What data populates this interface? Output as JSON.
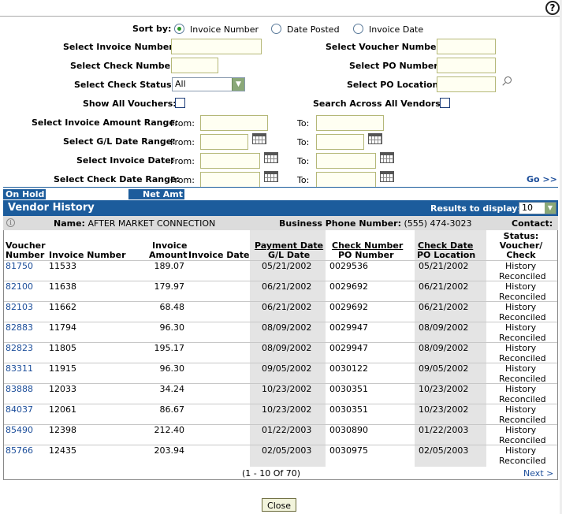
{
  "form": {
    "sort_by_label": "Sort by:",
    "sort_options": [
      "Invoice Number",
      "Date Posted",
      "Invoice Date"
    ],
    "sort_selected": "Invoice Number",
    "invoice_number_label": "Select Invoice Number:",
    "voucher_number_label": "Select Voucher Number:",
    "check_number_label": "Select Check Number:",
    "po_number_label": "Select PO Number:",
    "check_status_label": "Select Check Status:",
    "check_status_value": "All",
    "po_location_label": "Select PO Location:",
    "show_all_vouchers_label": "Show All Vouchers:",
    "search_all_vendors_label": "Search Across All Vendors:",
    "invoice_amount_range_label": "Select Invoice Amount Range:",
    "gl_date_range_label": "Select G/L Date Range:",
    "invoice_date_label": "Select Invoice Date:",
    "check_date_range_label": "Select Check Date Range:",
    "from_label": "From:",
    "to_label": "To:",
    "go_label": "Go >>"
  },
  "summary_bar": {
    "on_hold_label": "On Hold",
    "net_amt_label": "Net Amt"
  },
  "vendor_history": {
    "title": "Vendor History",
    "results_label": "Results to display:",
    "results_value": "10",
    "name_label": "Name:",
    "name_value": "AFTER MARKET CONNECTION",
    "phone_label": "Business Phone Number:",
    "phone_value": "(555) 474-3023",
    "contact_label": "Contact:"
  },
  "table": {
    "headers": {
      "voucher_1": "Voucher",
      "voucher_2": "Number",
      "invoice_number": "Invoice Number",
      "invoice_amount_1": "Invoice",
      "invoice_amount_2": "Amount",
      "invoice_date": "Invoice Date",
      "payment_date": "Payment Date",
      "gl_date": "G/L Date",
      "check_number": "Check Number",
      "po_number": "PO Number",
      "check_date": "Check Date",
      "po_location": "PO Location",
      "status_1": "Status:",
      "status_2": "Voucher/",
      "status_3": "Check"
    },
    "rows": [
      {
        "voucher": "81750",
        "invoice": "11533",
        "amount": "189.07",
        "payment_date": "05/21/2002",
        "check_number": "0029536",
        "check_date": "05/21/2002",
        "status_1": "History",
        "status_2": "Reconciled"
      },
      {
        "voucher": "82100",
        "invoice": "11638",
        "amount": "179.97",
        "payment_date": "06/21/2002",
        "check_number": "0029692",
        "check_date": "06/21/2002",
        "status_1": "History",
        "status_2": "Reconciled"
      },
      {
        "voucher": "82103",
        "invoice": "11662",
        "amount": "68.48",
        "payment_date": "06/21/2002",
        "check_number": "0029692",
        "check_date": "06/21/2002",
        "status_1": "History",
        "status_2": "Reconciled"
      },
      {
        "voucher": "82883",
        "invoice": "11794",
        "amount": "96.30",
        "payment_date": "08/09/2002",
        "check_number": "0029947",
        "check_date": "08/09/2002",
        "status_1": "History",
        "status_2": "Reconciled"
      },
      {
        "voucher": "82823",
        "invoice": "11805",
        "amount": "195.17",
        "payment_date": "08/09/2002",
        "check_number": "0029947",
        "check_date": "08/09/2002",
        "status_1": "History",
        "status_2": "Reconciled"
      },
      {
        "voucher": "83311",
        "invoice": "11915",
        "amount": "96.30",
        "payment_date": "09/05/2002",
        "check_number": "0030122",
        "check_date": "09/05/2002",
        "status_1": "History",
        "status_2": "Reconciled"
      },
      {
        "voucher": "83888",
        "invoice": "12033",
        "amount": "34.24",
        "payment_date": "10/23/2002",
        "check_number": "0030351",
        "check_date": "10/23/2002",
        "status_1": "History",
        "status_2": "Reconciled"
      },
      {
        "voucher": "84037",
        "invoice": "12061",
        "amount": "86.67",
        "payment_date": "10/23/2002",
        "check_number": "0030351",
        "check_date": "10/23/2002",
        "status_1": "History",
        "status_2": "Reconciled"
      },
      {
        "voucher": "85490",
        "invoice": "12398",
        "amount": "212.40",
        "payment_date": "01/22/2003",
        "check_number": "0030890",
        "check_date": "01/22/2003",
        "status_1": "History",
        "status_2": "Reconciled"
      },
      {
        "voucher": "85766",
        "invoice": "12435",
        "amount": "203.94",
        "payment_date": "02/05/2003",
        "check_number": "0030975",
        "check_date": "02/05/2003",
        "status_1": "History",
        "status_2": "Reconciled"
      }
    ]
  },
  "pager": {
    "text": "(1 - 10 Of 70)",
    "next_label": "Next >"
  },
  "close_label": "Close",
  "help_glyph": "?",
  "info_glyph": "i"
}
